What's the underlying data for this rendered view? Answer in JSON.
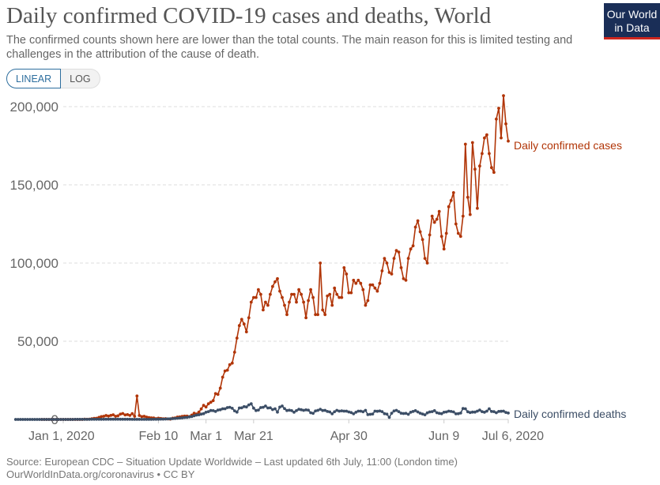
{
  "header": {
    "title": "Daily confirmed COVID-19 cases and deaths, World",
    "subtitle": "The confirmed counts shown here are lower than the total counts. The main reason for this is limited testing and challenges in the attribution of the cause of death.",
    "logo_line1": "Our World",
    "logo_line2": "in Data",
    "linear_label": "LINEAR",
    "log_label": "LOG"
  },
  "footer": {
    "source": "Source: European CDC – Situation Update Worldwide – Last updated 6th July, 11:00 (London time)",
    "link": "OurWorldInData.org/coronavirus • CC BY"
  },
  "colors": {
    "cases": "#b13507",
    "deaths": "#3c4e66",
    "logo_bg": "#1a2e57",
    "logo_accent": "#ce261e"
  },
  "chart_data": {
    "type": "line",
    "title": "Daily confirmed COVID-19 cases and deaths, World",
    "x_unit": "date",
    "x_start": "2020-01-01",
    "ylim": [
      0,
      210000
    ],
    "yticks": [
      0,
      50000,
      100000,
      150000,
      200000
    ],
    "ytick_labels": [
      "0",
      "50,000",
      "100,000",
      "150,000",
      "200,000"
    ],
    "xtick_labels": [
      "Jan 1, 2020",
      "Feb 10",
      "Mar 1",
      "Mar 21",
      "Apr 30",
      "Jun 9",
      "Jul 6, 2020"
    ],
    "xtick_dates": [
      "2020-01-01",
      "2020-02-10",
      "2020-03-01",
      "2020-03-21",
      "2020-04-30",
      "2020-06-09",
      "2020-07-06"
    ],
    "grid": true,
    "legend": "inline-right",
    "series": [
      {
        "name": "Daily confirmed cases",
        "values": [
          0,
          0,
          0,
          0,
          0,
          0,
          0,
          0,
          0,
          0,
          0,
          0,
          0,
          0,
          0,
          0,
          0,
          20,
          150,
          100,
          200,
          450,
          650,
          750,
          1300,
          1800,
          2000,
          2500,
          2100,
          2600,
          3000,
          2000,
          2300,
          3400,
          3800,
          2900,
          3100,
          2600,
          3700,
          2000,
          15000,
          2500,
          1800,
          2000,
          1500,
          1200,
          1000,
          900,
          500,
          800,
          600,
          400,
          500,
          300,
          200,
          800,
          900,
          1500,
          1600,
          1900,
          2100,
          2100,
          1800,
          2800,
          4000,
          3500,
          4700,
          6700,
          9000,
          8000,
          10000,
          11000,
          12000,
          16500,
          16000,
          20000,
          27000,
          31000,
          31500,
          35000,
          36000,
          43000,
          52000,
          60000,
          64000,
          61000,
          56000,
          65000,
          75000,
          78000,
          78000,
          83000,
          80000,
          70000,
          75000,
          73000,
          80000,
          85000,
          88000,
          90000,
          82000,
          78000,
          73000,
          67000,
          75000,
          80000,
          80000,
          75000,
          83000,
          80000,
          75000,
          65000,
          76000,
          83000,
          78000,
          67000,
          67000,
          100000,
          70000,
          67000,
          79000,
          80000,
          73000,
          84000,
          80000,
          78000,
          78000,
          97000,
          93000,
          81000,
          81000,
          89000,
          87000,
          89000,
          87000,
          83000,
          73000,
          76000,
          86000,
          86000,
          84000,
          82000,
          87000,
          95000,
          103000,
          100000,
          94000,
          93000,
          103000,
          108000,
          107000,
          97000,
          90000,
          89000,
          103000,
          109000,
          111000,
          123000,
          127000,
          120000,
          115000,
          103000,
          100000,
          118000,
          130000,
          126000,
          128000,
          133000,
          117000,
          109000,
          119000,
          136000,
          140000,
          145000,
          125000,
          119000,
          117000,
          130000,
          176000,
          142000,
          131000,
          177000,
          160000,
          135000,
          162000,
          170000,
          180000,
          182000,
          170000,
          161000,
          158000,
          192000,
          199000,
          180000,
          207000,
          189000,
          178000
        ]
      },
      {
        "name": "Daily confirmed deaths",
        "values": [
          0,
          0,
          0,
          0,
          0,
          0,
          0,
          0,
          0,
          0,
          0,
          0,
          0,
          0,
          0,
          0,
          0,
          0,
          0,
          0,
          0,
          0,
          0,
          10,
          20,
          30,
          40,
          50,
          60,
          60,
          60,
          70,
          80,
          90,
          100,
          110,
          110,
          120,
          130,
          140,
          150,
          150,
          150,
          140,
          100,
          100,
          100,
          100,
          80,
          70,
          70,
          70,
          40,
          30,
          30,
          40,
          50,
          70,
          80,
          100,
          130,
          190,
          200,
          250,
          340,
          410,
          480,
          600,
          750,
          900,
          1000,
          1250,
          1300,
          1600,
          1800,
          2300,
          2800,
          3000,
          3400,
          3700,
          4600,
          5000,
          5700,
          5600,
          5100,
          6000,
          6200,
          6800,
          6800,
          7600,
          7800,
          7100,
          5500,
          4700,
          7300,
          7400,
          8200,
          8000,
          9300,
          10000,
          7200,
          5700,
          6000,
          7600,
          7800,
          8600,
          7300,
          7400,
          6300,
          6800,
          4700,
          7900,
          8600,
          6900,
          5700,
          5900,
          5600,
          4600,
          5600,
          6500,
          6200,
          5800,
          6100,
          5900,
          4300,
          3900,
          5400,
          5800,
          6500,
          5700,
          5800,
          5100,
          4800,
          3600,
          4900,
          5800,
          5300,
          5500,
          5300,
          5300,
          4800,
          4400,
          3600,
          4600,
          5300,
          5300,
          4900,
          5800,
          3100,
          3300,
          3500,
          5300,
          5200,
          5400,
          5000,
          3700,
          3400,
          1300,
          4000,
          5400,
          5800,
          5000,
          4000,
          3800,
          3900,
          3300,
          4600,
          5100,
          5600,
          4800,
          4000,
          3500,
          3000,
          4200,
          4800,
          5000,
          5600,
          4300,
          3900,
          3700,
          4600,
          4800,
          5300,
          5100,
          4800,
          3600,
          3700,
          4100,
          7000,
          6800,
          4900,
          4400,
          4700,
          4700,
          5300,
          6000,
          5000,
          4600,
          5300,
          6800,
          5100,
          5000,
          4300,
          5100,
          5200,
          5300,
          4500,
          4100
        ]
      }
    ]
  }
}
